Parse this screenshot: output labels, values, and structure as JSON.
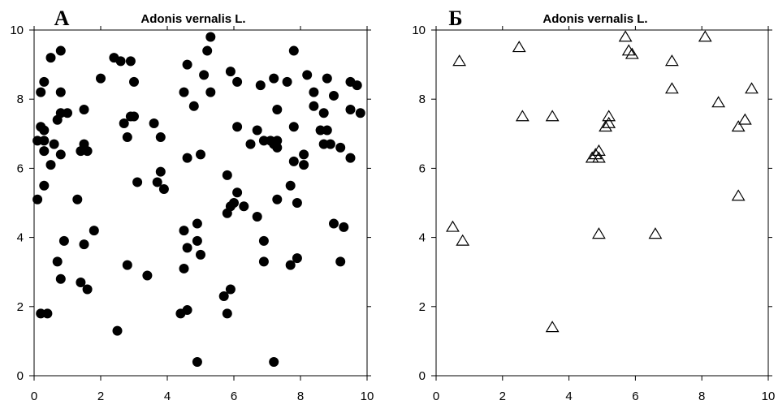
{
  "chart_data": [
    {
      "type": "scatter",
      "panel_letter": "А",
      "title": "Adonis vernalis L.",
      "xlabel": "",
      "ylabel": "",
      "xlim": [
        0,
        10
      ],
      "ylim": [
        0,
        10
      ],
      "x_ticks": [
        0,
        2,
        4,
        6,
        8,
        10
      ],
      "y_ticks": [
        0,
        2,
        4,
        6,
        8,
        10
      ],
      "marker": "filled-circle",
      "marker_color": "#000000",
      "grid": false,
      "points": [
        [
          0.1,
          6.8
        ],
        [
          0.1,
          5.1
        ],
        [
          0.2,
          8.2
        ],
        [
          0.2,
          7.2
        ],
        [
          0.2,
          1.8
        ],
        [
          0.3,
          8.5
        ],
        [
          0.3,
          7.1
        ],
        [
          0.3,
          6.8
        ],
        [
          0.3,
          6.5
        ],
        [
          0.3,
          5.5
        ],
        [
          0.4,
          1.8
        ],
        [
          0.5,
          9.2
        ],
        [
          0.5,
          6.1
        ],
        [
          0.6,
          6.7
        ],
        [
          0.7,
          7.4
        ],
        [
          0.7,
          3.3
        ],
        [
          0.8,
          9.4
        ],
        [
          0.8,
          8.2
        ],
        [
          0.8,
          7.6
        ],
        [
          0.8,
          6.4
        ],
        [
          0.8,
          2.8
        ],
        [
          0.9,
          3.9
        ],
        [
          1.0,
          7.6
        ],
        [
          1.3,
          5.1
        ],
        [
          1.4,
          6.5
        ],
        [
          1.4,
          2.7
        ],
        [
          1.5,
          7.7
        ],
        [
          1.5,
          6.7
        ],
        [
          1.5,
          3.8
        ],
        [
          1.6,
          6.5
        ],
        [
          1.6,
          2.5
        ],
        [
          1.8,
          4.2
        ],
        [
          2.0,
          8.6
        ],
        [
          2.4,
          9.2
        ],
        [
          2.5,
          1.3
        ],
        [
          2.6,
          9.1
        ],
        [
          2.7,
          7.3
        ],
        [
          2.8,
          6.9
        ],
        [
          2.8,
          3.2
        ],
        [
          2.9,
          7.5
        ],
        [
          3.0,
          8.5
        ],
        [
          3.0,
          7.5
        ],
        [
          3.1,
          5.6
        ],
        [
          3.4,
          2.9
        ],
        [
          3.6,
          7.3
        ],
        [
          3.7,
          5.6
        ],
        [
          3.8,
          6.9
        ],
        [
          3.8,
          5.9
        ],
        [
          3.9,
          5.4
        ],
        [
          4.4,
          1.8
        ],
        [
          4.5,
          8.2
        ],
        [
          4.5,
          4.2
        ],
        [
          4.5,
          3.1
        ],
        [
          4.6,
          9.0
        ],
        [
          4.6,
          6.3
        ],
        [
          4.6,
          3.7
        ],
        [
          4.6,
          1.9
        ],
        [
          4.8,
          7.8
        ],
        [
          4.9,
          4.4
        ],
        [
          4.9,
          3.9
        ],
        [
          4.9,
          0.4
        ],
        [
          5.0,
          6.4
        ],
        [
          5.0,
          3.5
        ],
        [
          5.2,
          9.4
        ],
        [
          5.3,
          9.8
        ],
        [
          5.3,
          8.2
        ],
        [
          5.7,
          2.3
        ],
        [
          5.8,
          5.8
        ],
        [
          5.8,
          4.7
        ],
        [
          5.8,
          1.8
        ],
        [
          5.9,
          8.8
        ],
        [
          5.9,
          4.9
        ],
        [
          5.9,
          2.5
        ],
        [
          6.0,
          5.0
        ],
        [
          6.1,
          8.5
        ],
        [
          6.1,
          7.2
        ],
        [
          6.1,
          5.3
        ],
        [
          6.3,
          4.9
        ],
        [
          6.5,
          6.7
        ],
        [
          6.7,
          7.1
        ],
        [
          6.7,
          4.6
        ],
        [
          6.8,
          8.4
        ],
        [
          6.9,
          6.8
        ],
        [
          6.9,
          3.9
        ],
        [
          6.9,
          3.3
        ],
        [
          7.2,
          8.6
        ],
        [
          7.2,
          6.7
        ],
        [
          7.2,
          0.4
        ],
        [
          7.3,
          7.7
        ],
        [
          7.3,
          6.8
        ],
        [
          7.3,
          6.6
        ],
        [
          7.3,
          5.1
        ],
        [
          7.6,
          8.5
        ],
        [
          7.7,
          5.5
        ],
        [
          7.7,
          3.2
        ],
        [
          7.8,
          9.4
        ],
        [
          7.8,
          7.2
        ],
        [
          7.8,
          6.2
        ],
        [
          7.9,
          5.0
        ],
        [
          7.9,
          3.4
        ],
        [
          8.1,
          6.4
        ],
        [
          8.1,
          6.1
        ],
        [
          8.2,
          8.7
        ],
        [
          8.4,
          7.8
        ],
        [
          8.4,
          8.2
        ],
        [
          8.6,
          7.1
        ],
        [
          8.7,
          7.6
        ],
        [
          8.7,
          6.7
        ],
        [
          8.8,
          8.6
        ],
        [
          8.8,
          7.1
        ],
        [
          8.9,
          6.7
        ],
        [
          9.0,
          8.1
        ],
        [
          9.0,
          4.4
        ],
        [
          9.2,
          6.6
        ],
        [
          9.2,
          3.3
        ],
        [
          9.3,
          4.3
        ],
        [
          9.5,
          8.5
        ],
        [
          9.5,
          7.7
        ],
        [
          9.5,
          6.3
        ],
        [
          9.7,
          8.4
        ],
        [
          9.8,
          7.6
        ],
        [
          7.1,
          6.8
        ],
        [
          5.1,
          8.7
        ],
        [
          2.9,
          9.1
        ]
      ]
    },
    {
      "type": "scatter",
      "panel_letter": "Б",
      "title": "Adonis vernalis L.",
      "xlabel": "",
      "ylabel": "",
      "xlim": [
        0,
        10
      ],
      "ylim": [
        0,
        10
      ],
      "x_ticks": [
        0,
        2,
        4,
        6,
        8,
        10
      ],
      "y_ticks": [
        0,
        2,
        4,
        6,
        8,
        10
      ],
      "marker": "open-triangle",
      "marker_color": "#000000",
      "grid": false,
      "points": [
        [
          0.5,
          4.3
        ],
        [
          0.7,
          9.1
        ],
        [
          0.8,
          3.9
        ],
        [
          2.5,
          9.5
        ],
        [
          2.6,
          7.5
        ],
        [
          3.5,
          7.5
        ],
        [
          3.5,
          1.4
        ],
        [
          4.7,
          6.3
        ],
        [
          4.8,
          6.4
        ],
        [
          4.9,
          6.3
        ],
        [
          4.9,
          6.5
        ],
        [
          4.9,
          4.1
        ],
        [
          5.1,
          7.2
        ],
        [
          5.2,
          7.5
        ],
        [
          5.2,
          7.3
        ],
        [
          5.7,
          9.8
        ],
        [
          5.8,
          9.4
        ],
        [
          5.9,
          9.3
        ],
        [
          6.6,
          4.1
        ],
        [
          7.1,
          9.1
        ],
        [
          7.1,
          8.3
        ],
        [
          8.1,
          9.8
        ],
        [
          8.5,
          7.9
        ],
        [
          9.1,
          7.2
        ],
        [
          9.1,
          5.2
        ],
        [
          9.3,
          7.4
        ],
        [
          9.5,
          8.3
        ]
      ]
    }
  ]
}
